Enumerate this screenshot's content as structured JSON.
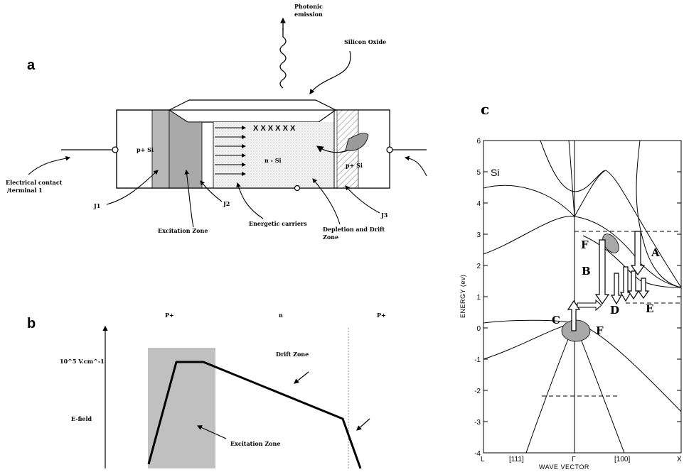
{
  "panel_a": {
    "letter": "a",
    "photon_emission": [
      "Photonic",
      "emission"
    ],
    "silicon_oxide": "Silicon Oxide",
    "x_marks": "X X X X X X",
    "p_left": "p+ Si",
    "n_center": "n - Si",
    "p_right": "p+ Si",
    "electrical_contact": [
      "Electrical contact",
      "/terminal 1"
    ],
    "j1": "J1",
    "j2": "J2",
    "j3": "J3",
    "excitation_zone": "Excitation Zone",
    "energetic_carriers": "Energetic carriers",
    "depletion_drift": [
      "Depletion and Drift",
      "Zone"
    ]
  },
  "panel_b": {
    "letter": "b",
    "region_p_left": "P+",
    "region_n": "n",
    "region_p_right": "P+",
    "field_level": "10^5 V.cm^-1",
    "ylabel": "E-field",
    "drift_zone": "Drift Zone",
    "excitation_zone": "Excitation Zone"
  },
  "panel_c": {
    "letter": "c",
    "material_label": "Si",
    "ylabel": "ENERGY (ev)",
    "xlabel": "WAVE VECTOR",
    "x_ticks": [
      "L",
      "[111]",
      "Γ",
      "[100]",
      "X"
    ],
    "y_ticks": [
      "6",
      "5",
      "4",
      "3",
      "2",
      "1",
      "0",
      "-1",
      "-2",
      "-3",
      "-4"
    ],
    "ylim": [
      -4,
      6
    ],
    "markers": {
      "A": "A",
      "B": "B",
      "C": "C",
      "D": "D",
      "E": "E",
      "F_top": "F",
      "F_bottom": "F"
    }
  }
}
